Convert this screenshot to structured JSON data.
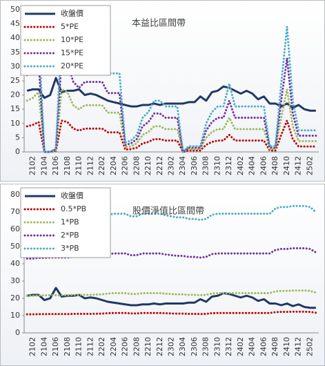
{
  "chart_data": [
    {
      "type": "line",
      "title": "本益比區間帶",
      "categories": [
        null,
        "2102",
        null,
        "2104",
        null,
        "2106",
        null,
        "2108",
        null,
        "2110",
        null,
        "2112",
        null,
        "2202",
        null,
        "2204",
        null,
        "2206",
        null,
        "2208",
        null,
        "2210",
        null,
        "2212",
        null,
        "2302",
        null,
        "2304",
        null,
        "2306",
        null,
        "2308",
        null,
        "2310",
        null,
        "2312",
        null,
        "2402",
        null,
        "2404",
        null,
        "2406",
        null,
        "2408",
        null,
        "2410",
        null,
        "2412",
        null,
        "2502",
        null
      ],
      "ylim": [
        0,
        50
      ],
      "yticks": [
        0,
        5,
        10,
        15,
        20,
        25,
        30,
        35,
        40,
        45,
        50
      ],
      "legend": "top-left",
      "series": [
        {
          "name": "收盤價",
          "color": "#1f3864",
          "style": "solid",
          "values": [
            21.5,
            22,
            22,
            19,
            20,
            26,
            21,
            21.5,
            21.5,
            22,
            20,
            20.5,
            20,
            19,
            18,
            17.5,
            17,
            16.5,
            16,
            16,
            16.5,
            16.5,
            17,
            16.5,
            17,
            17,
            17,
            17,
            17.5,
            17.5,
            19.5,
            18,
            21,
            21.5,
            23,
            22.5,
            21.5,
            20.5,
            21.5,
            20.5,
            18.5,
            19.5,
            17,
            17,
            16,
            17,
            15.5,
            16.5,
            15,
            14.5,
            14.5
          ]
        },
        {
          "name": "5*PE",
          "color": "#c00000",
          "style": "dotted",
          "values": [
            9,
            9.5,
            10.5,
            0,
            0,
            0.3,
            11,
            10.5,
            8.2,
            7.5,
            8.2,
            8.2,
            8.2,
            8.2,
            6.9,
            6.9,
            6.9,
            0.8,
            1,
            1.5,
            3,
            3.5,
            4.5,
            4.5,
            4,
            4,
            4,
            0,
            0.5,
            0.5,
            0.5,
            2.5,
            3.5,
            4,
            4,
            6,
            4,
            4,
            4,
            4,
            4,
            4,
            0.5,
            0.5,
            6,
            11,
            4.5,
            1.9,
            1.9,
            1.9,
            1.9
          ]
        },
        {
          "name": "10*PE",
          "color": "#9bbb59",
          "style": "dotted",
          "values": [
            18,
            19,
            21,
            0,
            0,
            0.6,
            22,
            21,
            16.4,
            15,
            16.4,
            16.4,
            16.4,
            16.4,
            13.8,
            13.8,
            13.8,
            1.6,
            2,
            3,
            6,
            7,
            9,
            9,
            8,
            8,
            8,
            0,
            1,
            1,
            1,
            5,
            7,
            8,
            8,
            12,
            8,
            8,
            8,
            8,
            8,
            8,
            1,
            1,
            12,
            22,
            9,
            3.8,
            3.8,
            3.8,
            3.8
          ]
        },
        {
          "name": "15*PE",
          "color": "#7030a0",
          "style": "dotted",
          "values": [
            27,
            28.5,
            31.5,
            0,
            0,
            0.9,
            33,
            31.5,
            24.6,
            22.5,
            24.6,
            24.6,
            24.6,
            24.6,
            20.7,
            20.7,
            20.7,
            2.4,
            3,
            4.5,
            9,
            10.5,
            13.5,
            13.5,
            12,
            12,
            12,
            0,
            1.5,
            1.5,
            1.5,
            7.5,
            10.5,
            12,
            12,
            18,
            12,
            12,
            12,
            12,
            12,
            12,
            1.5,
            1.5,
            18,
            33,
            13.5,
            5.7,
            5.7,
            5.7,
            5.7
          ]
        },
        {
          "name": "20*PE",
          "color": "#4bacc6",
          "style": "dotted",
          "values": [
            36,
            38,
            42,
            0,
            0,
            1.2,
            44,
            42,
            32.8,
            30,
            32.8,
            32.8,
            32.8,
            32.8,
            27.6,
            27.6,
            27.6,
            3.2,
            4,
            6,
            12,
            14,
            18,
            18,
            16,
            16,
            16,
            0,
            2,
            2,
            2,
            10,
            14,
            16,
            16,
            24,
            16,
            16,
            16,
            16,
            16,
            16,
            2,
            2,
            24,
            44,
            18,
            7.6,
            7.6,
            7.6,
            7.6
          ]
        }
      ]
    },
    {
      "type": "line",
      "title": "股價淨值比區間帶",
      "categories": [
        null,
        "2102",
        null,
        "2104",
        null,
        "2106",
        null,
        "2108",
        null,
        "2110",
        null,
        "2112",
        null,
        "2202",
        null,
        "2204",
        null,
        "2206",
        null,
        "2208",
        null,
        "2210",
        null,
        "2212",
        null,
        "2302",
        null,
        "2304",
        null,
        "2306",
        null,
        "2308",
        null,
        "2310",
        null,
        "2312",
        null,
        "2402",
        null,
        "2404",
        null,
        "2406",
        null,
        "2408",
        null,
        "2410",
        null,
        "2412",
        null,
        "2502",
        null
      ],
      "ylim": [
        0,
        80
      ],
      "yticks": [
        0,
        10,
        20,
        30,
        40,
        50,
        60,
        70,
        80
      ],
      "legend": "top-left",
      "series": [
        {
          "name": "收盤價",
          "color": "#1f3864",
          "style": "solid",
          "values": [
            21.5,
            22,
            22,
            19,
            20,
            26,
            21,
            21.5,
            21.5,
            22,
            20,
            20.5,
            20,
            19,
            18,
            17.5,
            17,
            16.5,
            16,
            16,
            16.5,
            16.5,
            17,
            16.5,
            17,
            17,
            17,
            17,
            17.5,
            17.5,
            19.5,
            18,
            21,
            21.5,
            23,
            22.5,
            21.5,
            20.5,
            21.5,
            20.5,
            18.5,
            19.5,
            17,
            17,
            16,
            17,
            15.5,
            16.5,
            15,
            14.5,
            14.5
          ]
        },
        {
          "name": "0.5*PB",
          "color": "#c00000",
          "style": "dotted",
          "values": [
            10.75,
            10.75,
            10.85,
            10.85,
            10.9,
            10.9,
            10.9,
            10.9,
            11,
            11,
            11,
            11,
            11.1,
            11.15,
            11.4,
            11.5,
            11.5,
            11.5,
            11.25,
            11.25,
            11.5,
            11.5,
            11.5,
            11.5,
            11.35,
            11.25,
            11.15,
            11.15,
            11,
            11,
            10.9,
            11,
            11.4,
            11.5,
            11.5,
            11.5,
            11.5,
            11.5,
            11.5,
            11.5,
            11.5,
            11.5,
            11.5,
            12,
            12.15,
            12.15,
            12.25,
            12.25,
            12.25,
            12.15,
            11.65
          ]
        },
        {
          "name": "1*PB",
          "color": "#9bbb59",
          "style": "dotted",
          "values": [
            21.5,
            21.5,
            21.7,
            21.7,
            21.8,
            21.8,
            21.8,
            21.8,
            22,
            22,
            22,
            22,
            22.2,
            22.3,
            22.8,
            23,
            23,
            23,
            22.5,
            22.5,
            23,
            23,
            23,
            23,
            22.7,
            22.5,
            22.3,
            22.3,
            22,
            22,
            21.8,
            22,
            22.8,
            23,
            23,
            23,
            23,
            23,
            23,
            23,
            23,
            23,
            23,
            24,
            24.3,
            24.3,
            24.5,
            24.5,
            24.5,
            24.3,
            23.3
          ]
        },
        {
          "name": "2*PB",
          "color": "#7030a0",
          "style": "dotted",
          "values": [
            43,
            43,
            43.4,
            43.4,
            43.6,
            43.6,
            43.6,
            43.6,
            44,
            44,
            44,
            44,
            44.4,
            44.6,
            45.6,
            46,
            46,
            46,
            45,
            45,
            46,
            46,
            46,
            46,
            45.4,
            45,
            44.6,
            44.6,
            44,
            44,
            43.6,
            44,
            45.6,
            46,
            46,
            46,
            46,
            46,
            46,
            46,
            46,
            46,
            46,
            48,
            48.6,
            48.6,
            49,
            49,
            49,
            48.6,
            46.6
          ]
        },
        {
          "name": "3*PB",
          "color": "#4bacc6",
          "style": "dotted",
          "values": [
            64.5,
            64.5,
            65.1,
            65.1,
            65.4,
            65.4,
            65.4,
            65.4,
            66,
            66,
            66,
            66,
            66.6,
            66.9,
            68.4,
            69,
            69,
            69,
            67.5,
            67.5,
            69,
            69,
            69,
            69,
            68.1,
            67.5,
            66.9,
            66.9,
            66,
            66,
            65.4,
            66,
            68.4,
            69,
            69,
            69,
            69,
            69,
            69,
            69,
            69,
            69,
            69,
            72,
            72.9,
            72.9,
            73.5,
            73.5,
            73.5,
            72.9,
            69.9
          ]
        }
      ]
    }
  ]
}
